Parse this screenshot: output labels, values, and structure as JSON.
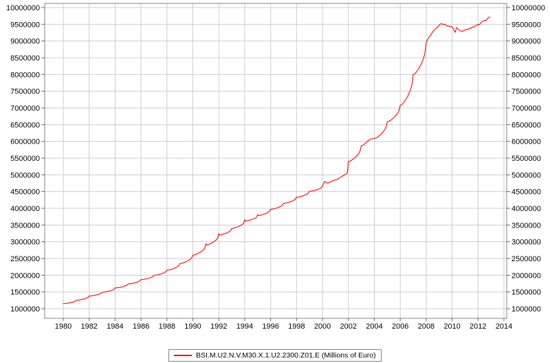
{
  "page": {
    "background": "#ffffff"
  },
  "legend": {
    "label": "BSI.M.U2.N.V.M30.X.1.U2.2300.Z01.E (Millions of Euro)"
  },
  "chart_data": {
    "type": "line",
    "title": "",
    "xlabel": "",
    "ylabel": "",
    "grid": true,
    "legend_position": "bottom-center",
    "colors": {
      "line": "#ff0000",
      "grid": "#cccccc",
      "border": "#808080",
      "tick": "#666666",
      "text": "#000000"
    },
    "x_axis": {
      "ticks": [
        1980,
        1982,
        1984,
        1986,
        1988,
        1990,
        1992,
        1994,
        1996,
        1998,
        2000,
        2002,
        2004,
        2006,
        2008,
        2010,
        2012,
        2014
      ],
      "lim": [
        1978.568,
        2014.212
      ]
    },
    "y_axis": {
      "ticks": [
        1000000,
        1500000,
        2000000,
        2500000,
        3000000,
        3500000,
        4000000,
        4500000,
        5000000,
        5500000,
        6000000,
        6500000,
        7000000,
        7500000,
        8000000,
        8500000,
        9000000,
        9500000,
        10000000
      ],
      "lim": [
        712000,
        10123000
      ]
    },
    "series": [
      {
        "name": "BSI.M.U2.N.V.M30.X.1.U2.2300.Z01.E (Millions of Euro)",
        "color": "#ff0000",
        "start_year": 1980,
        "frequency": "monthly",
        "values": [
          1150000,
          1151000,
          1154000,
          1158000,
          1163000,
          1168000,
          1174000,
          1180000,
          1188000,
          1196000,
          1206000,
          1220000,
          1250000,
          1251300,
          1255200,
          1260400,
          1266900,
          1273400,
          1281200,
          1289000,
          1299400,
          1309800,
          1322800,
          1341000,
          1380000,
          1381100,
          1384400,
          1388800,
          1394300,
          1399800,
          1406400,
          1413000,
          1421800,
          1430600,
          1441600,
          1457000,
          1490000,
          1491300,
          1495200,
          1500400,
          1506900,
          1513400,
          1521200,
          1529000,
          1539400,
          1549800,
          1562800,
          1581000,
          1620000,
          1621200,
          1624800,
          1629600,
          1635600,
          1641600,
          1648800,
          1656000,
          1665600,
          1675200,
          1687200,
          1704000,
          1740000,
          1741300,
          1745200,
          1750400,
          1756900,
          1763400,
          1771200,
          1779000,
          1789400,
          1799800,
          1812800,
          1831000,
          1870000,
          1871300,
          1875200,
          1880400,
          1886900,
          1893400,
          1901200,
          1909000,
          1919400,
          1929800,
          1942800,
          1961000,
          2000000,
          2001500,
          2006000,
          2012000,
          2019500,
          2027000,
          2036000,
          2045000,
          2057000,
          2069000,
          2084000,
          2105000,
          2150000,
          2152000,
          2158000,
          2166000,
          2176000,
          2186000,
          2198000,
          2210000,
          2226000,
          2242000,
          2262000,
          2290000,
          2350000,
          2352500,
          2360000,
          2370000,
          2382500,
          2395000,
          2410000,
          2425000,
          2445000,
          2465000,
          2490000,
          2525000,
          2600000,
          2603000,
          2612000,
          2624000,
          2639000,
          2654000,
          2672000,
          2690000,
          2714000,
          2738000,
          2768000,
          2810000,
          2945000,
          2902000,
          2912000,
          2924000,
          2939000,
          2954000,
          2972000,
          2990000,
          3014000,
          3038000,
          3068000,
          3110000,
          3240000,
          3202000,
          3208000,
          3216000,
          3226000,
          3236000,
          3248000,
          3260000,
          3276000,
          3292000,
          3312000,
          3340000,
          3400000,
          3402200,
          3408800,
          3417600,
          3428600,
          3439600,
          3452800,
          3466000,
          3483600,
          3501200,
          3523200,
          3554000,
          3660000,
          3622000,
          3626400,
          3632800,
          3640800,
          3648800,
          3658400,
          3668000,
          3680800,
          3693600,
          3709600,
          3732000,
          3815000,
          3782000,
          3787600,
          3795200,
          3804700,
          3814200,
          3825600,
          3837000,
          3852200,
          3867400,
          3886400,
          3913000,
          3970000,
          3971800,
          3977200,
          3984400,
          3993400,
          4002400,
          4013200,
          4024000,
          4038400,
          4052800,
          4070800,
          4096000,
          4150000,
          4151800,
          4157200,
          4164400,
          4173400,
          4182400,
          4193200,
          4204000,
          4218400,
          4232800,
          4250800,
          4276000,
          4330000,
          4331800,
          4337200,
          4344400,
          4353400,
          4362400,
          4373200,
          4384000,
          4398400,
          4412800,
          4430800,
          4456000,
          4510000,
          4511600,
          4516400,
          4522800,
          4530800,
          4538800,
          4548400,
          4558000,
          4570800,
          4583600,
          4599600,
          4622000,
          4670000,
          4740000,
          4800000,
          4790000,
          4760000,
          4755000,
          4770000,
          4780000,
          4800000,
          4815000,
          4830000,
          4840000,
          4850000,
          4855000,
          4870000,
          4890000,
          4910000,
          4930000,
          4950000,
          4970000,
          4990000,
          5010000,
          5030000,
          5060000,
          5400000,
          5404700,
          5418800,
          5437600,
          5461100,
          5484600,
          5512800,
          5541000,
          5578600,
          5616200,
          5663200,
          5729000,
          5870000,
          5880000,
          5900000,
          5925000,
          5950000,
          5980000,
          6010000,
          6040000,
          6060000,
          6070000,
          6075000,
          6080000,
          6090000,
          6095000,
          6110000,
          6130000,
          6155000,
          6180000,
          6210000,
          6240000,
          6280000,
          6320000,
          6370000,
          6440000,
          6590000,
          6594900,
          6609600,
          6629200,
          6653700,
          6678200,
          6707600,
          6737000,
          6776200,
          6815400,
          6864400,
          6933000,
          7080000,
          7089200,
          7116800,
          7153600,
          7199600,
          7245600,
          7300800,
          7356000,
          7429600,
          7503200,
          7595200,
          7724000,
          8000000,
          8009500,
          8038000,
          8076000,
          8123500,
          8171000,
          8228000,
          8285000,
          8361000,
          8437000,
          8532000,
          8665000,
          8950000,
          9020000,
          9080000,
          9130000,
          9170000,
          9220000,
          9270000,
          9310000,
          9340000,
          9380000,
          9400000,
          9430000,
          9470000,
          9500000,
          9520000,
          9510000,
          9490000,
          9500000,
          9480000,
          9460000,
          9440000,
          9450000,
          9430000,
          9440000,
          9420000,
          9380000,
          9300000,
          9260000,
          9400000,
          9380000,
          9340000,
          9320000,
          9300000,
          9290000,
          9300000,
          9310000,
          9330000,
          9350000,
          9340000,
          9360000,
          9380000,
          9370000,
          9400000,
          9420000,
          9410000,
          9440000,
          9460000,
          9470000,
          9500000,
          9480000,
          9520000,
          9550000,
          9580000,
          9600000,
          9620000,
          9600000,
          9640000,
          9680000,
          9700000,
          9720000
        ]
      }
    ]
  }
}
